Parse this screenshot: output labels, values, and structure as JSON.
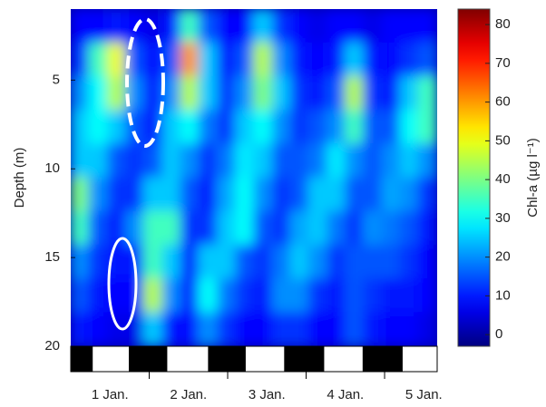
{
  "chart_data": {
    "type": "heatmap",
    "y_label": "Depth (m)",
    "colorbar_label": "Chl-a (µg l⁻¹)",
    "xlim": [
      0,
      4.67
    ],
    "ylim": [
      1,
      20
    ],
    "clim": [
      -3,
      84
    ],
    "colormap": "jet",
    "xticks": [
      1,
      2,
      3,
      4
    ],
    "xticklabels": [
      {
        "value": 0.5,
        "label": "1 Jan."
      },
      {
        "value": 1.5,
        "label": "2 Jan."
      },
      {
        "value": 2.5,
        "label": "3 Jan."
      },
      {
        "value": 3.5,
        "label": "4 Jan."
      },
      {
        "value": 4.5,
        "label": "5 Jan."
      }
    ],
    "yticks": [
      5,
      10,
      15,
      20
    ],
    "cticks": [
      0,
      10,
      20,
      30,
      40,
      50,
      60,
      70,
      80
    ],
    "night": [
      [
        0,
        0.28
      ],
      [
        0.74,
        1.23
      ],
      [
        1.75,
        2.23
      ],
      [
        2.72,
        3.23
      ],
      [
        3.72,
        4.23
      ]
    ],
    "x_edges": [
      0,
      0.23,
      0.47,
      0.7,
      0.93,
      1.17,
      1.4,
      1.63,
      1.87,
      2.1,
      2.33,
      2.57,
      2.8,
      3.03,
      3.27,
      3.5,
      3.73,
      3.97,
      4.2,
      4.43,
      4.67
    ],
    "y_edges": [
      1,
      2.9,
      4.8,
      6.7,
      8.6,
      10.5,
      12.4,
      14.3,
      16.2,
      18.1,
      20
    ],
    "z": [
      [
        8,
        8,
        10,
        8,
        6,
        10,
        35,
        15,
        8,
        8,
        25,
        12,
        8,
        6,
        8,
        8,
        6,
        8,
        8,
        8
      ],
      [
        12,
        35,
        50,
        15,
        8,
        15,
        60,
        25,
        10,
        15,
        45,
        20,
        10,
        8,
        10,
        25,
        10,
        8,
        12,
        15
      ],
      [
        20,
        30,
        45,
        20,
        10,
        20,
        45,
        25,
        12,
        20,
        40,
        25,
        12,
        10,
        15,
        45,
        12,
        10,
        25,
        35
      ],
      [
        25,
        30,
        25,
        15,
        10,
        25,
        30,
        18,
        12,
        25,
        30,
        20,
        12,
        15,
        20,
        35,
        15,
        15,
        30,
        35
      ],
      [
        25,
        25,
        15,
        12,
        15,
        25,
        20,
        12,
        18,
        28,
        25,
        15,
        15,
        18,
        28,
        20,
        15,
        20,
        25,
        20
      ],
      [
        40,
        20,
        12,
        12,
        25,
        25,
        15,
        10,
        22,
        30,
        20,
        12,
        15,
        25,
        25,
        15,
        15,
        22,
        20,
        12
      ],
      [
        35,
        15,
        10,
        20,
        35,
        35,
        12,
        12,
        25,
        30,
        15,
        12,
        22,
        25,
        18,
        12,
        20,
        18,
        15,
        10
      ],
      [
        20,
        12,
        10,
        10,
        35,
        25,
        10,
        25,
        25,
        15,
        12,
        18,
        25,
        20,
        12,
        15,
        15,
        15,
        12,
        8
      ],
      [
        15,
        10,
        8,
        8,
        45,
        20,
        10,
        30,
        18,
        12,
        10,
        20,
        20,
        12,
        10,
        15,
        12,
        10,
        10,
        8
      ],
      [
        10,
        8,
        6,
        6,
        25,
        10,
        8,
        20,
        12,
        8,
        8,
        12,
        12,
        8,
        8,
        15,
        10,
        8,
        8,
        6
      ]
    ]
  }
}
